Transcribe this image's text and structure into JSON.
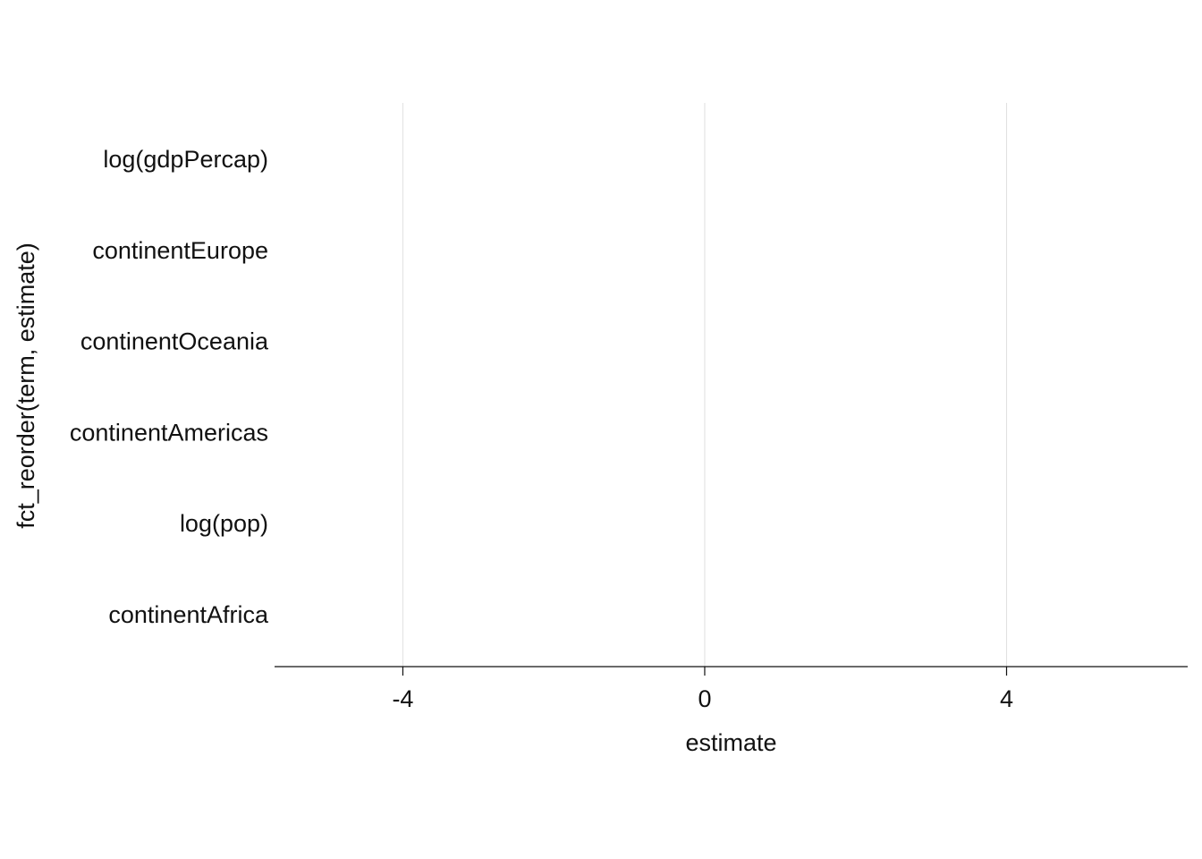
{
  "chart_data": {
    "type": "scatter",
    "title": "",
    "xlabel": "estimate",
    "ylabel": "fct_reorder(term, estimate)",
    "xlim": [
      -5.7,
      6.4
    ],
    "x_ticks": [
      -4,
      0,
      4
    ],
    "x_tick_labels": [
      "-4",
      "0",
      "4"
    ],
    "categories": [
      "log(gdpPercap)",
      "continentEurope",
      "continentOceania",
      "continentAmericas",
      "log(pop)",
      "continentAfrica"
    ],
    "grid": {
      "vertical_major": true,
      "horizontal": false
    },
    "legend": "none",
    "colors": {
      "grid": "#e0e0e0",
      "axis": "#111111",
      "text": "#111111"
    },
    "series": []
  }
}
